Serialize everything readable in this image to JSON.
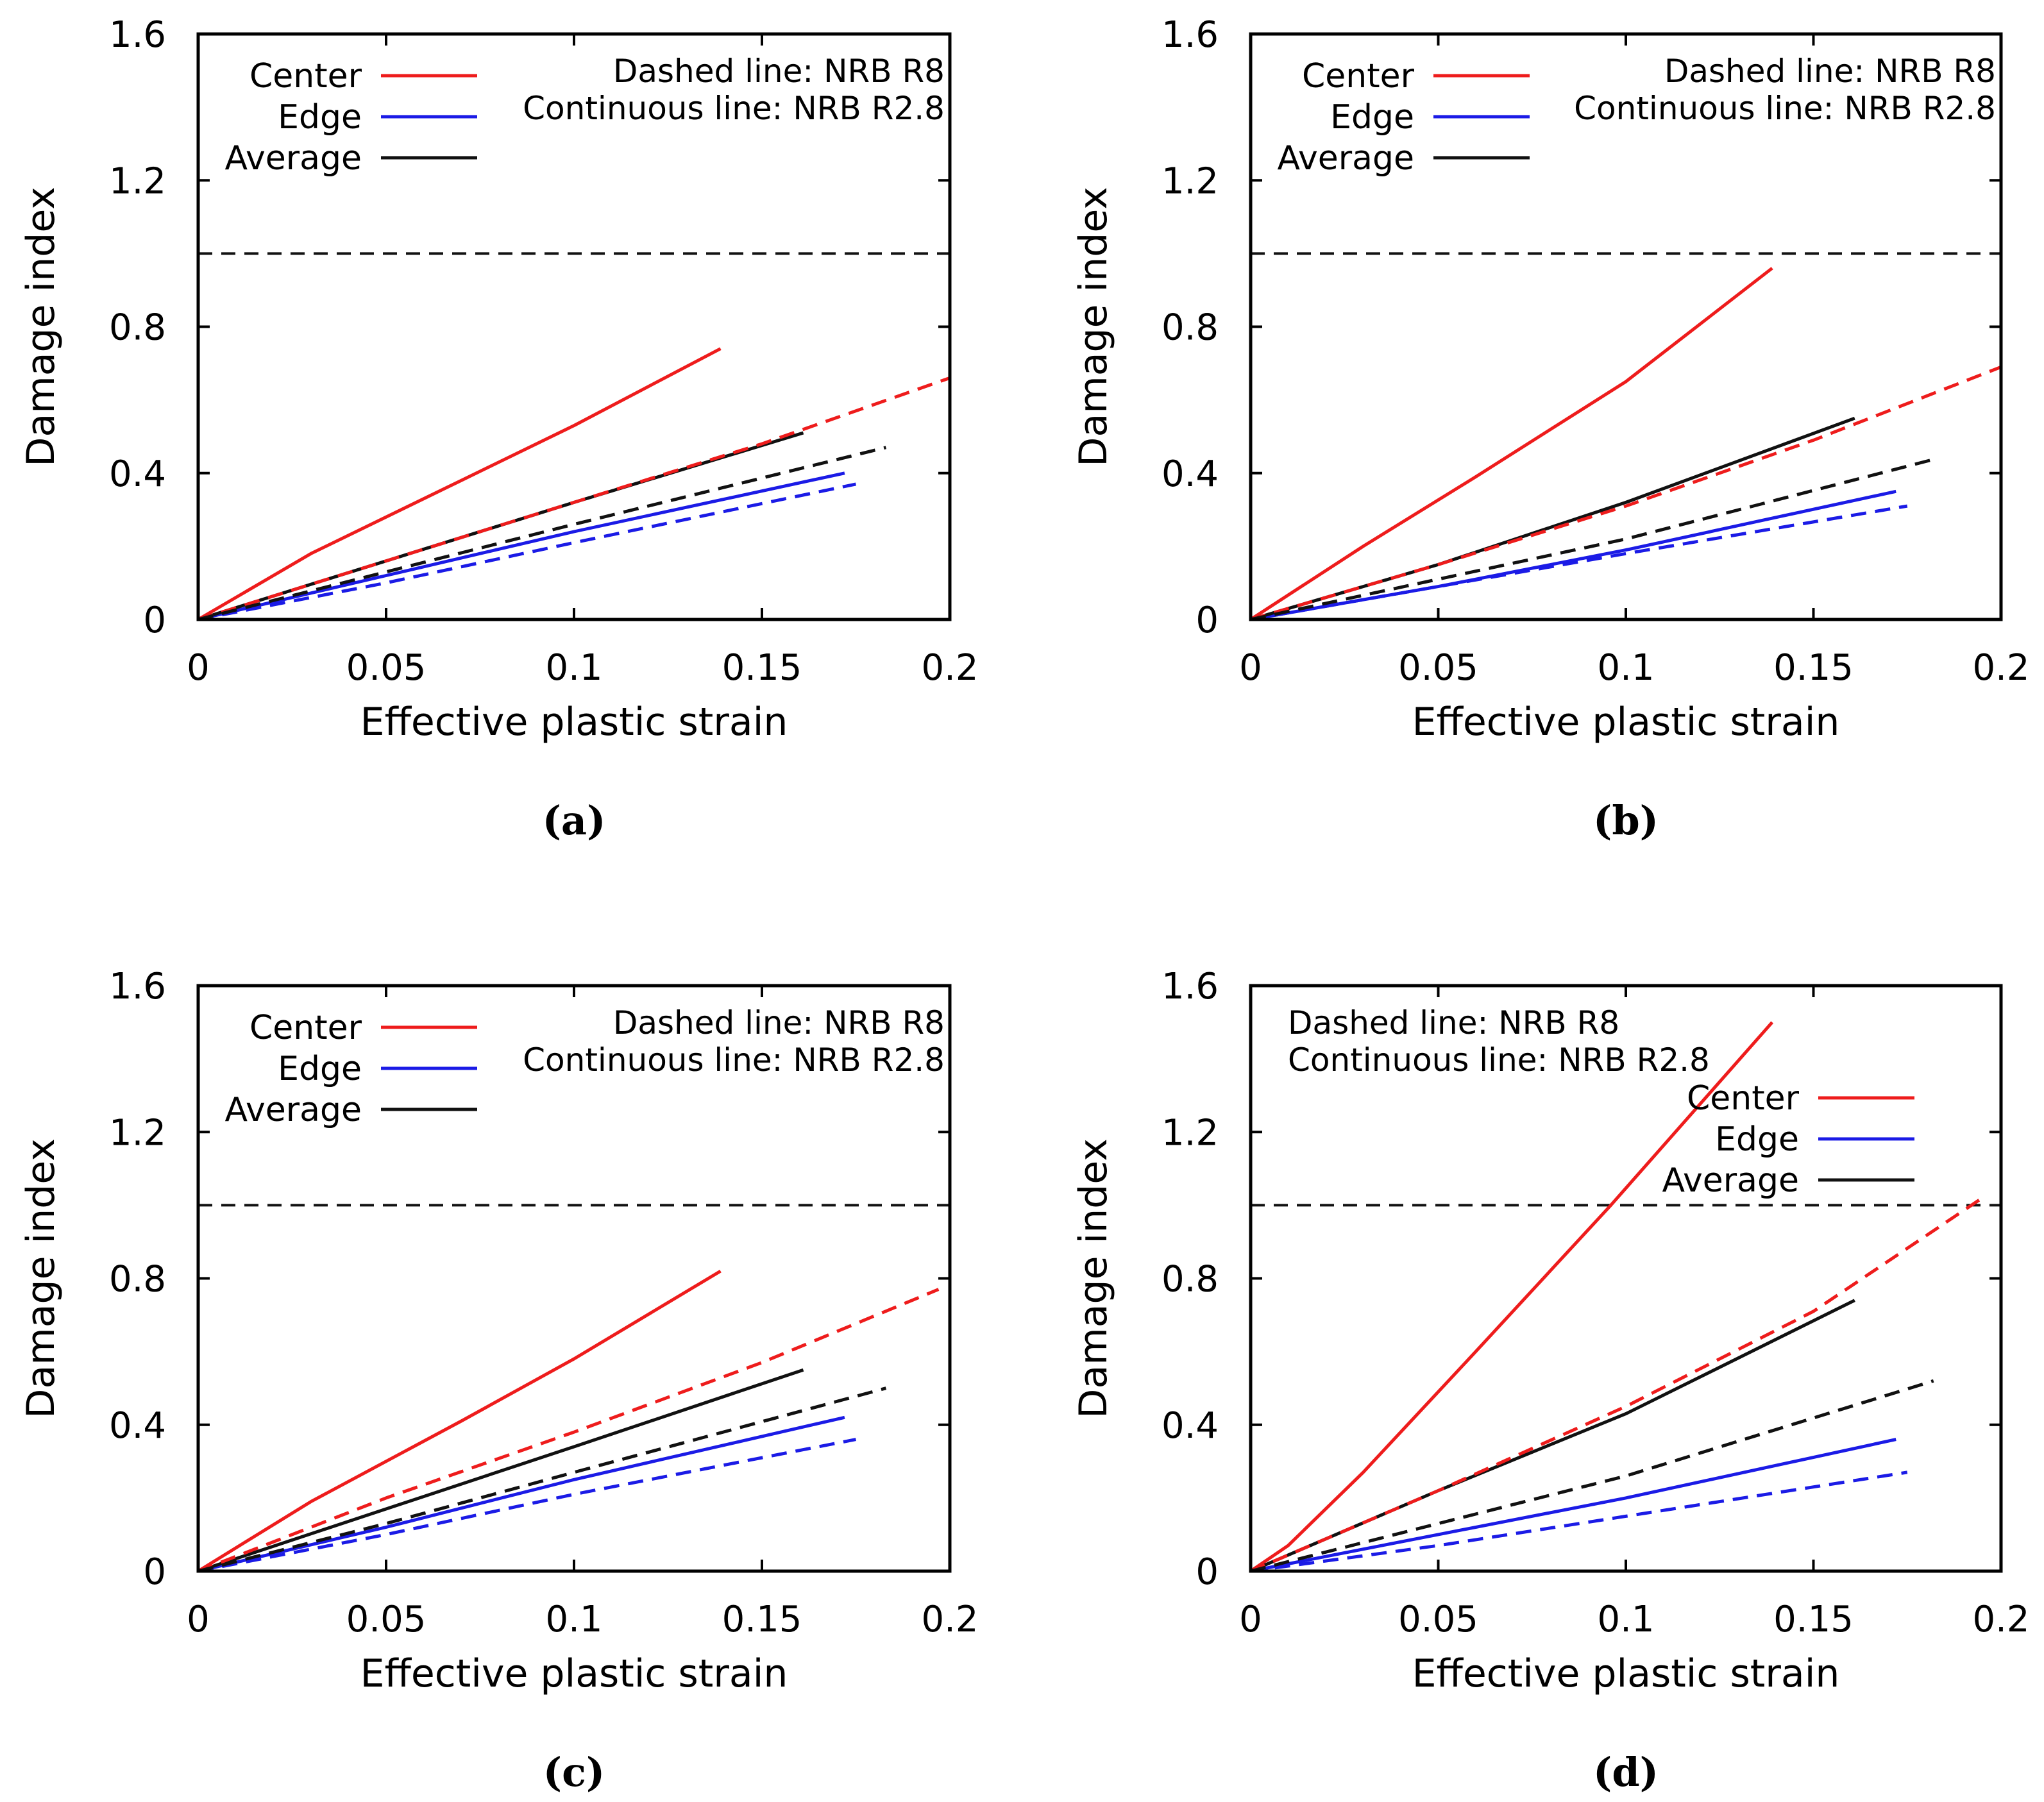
{
  "panel_labels": [
    "(a)",
    "(b)",
    "(c)",
    "(d)"
  ],
  "colors": {
    "center": "#ee1c1c",
    "edge": "#1b1be6",
    "average": "#111111",
    "axis": "#000000"
  },
  "chart_data": [
    {
      "id": "a",
      "type": "line",
      "caption": "(a)",
      "xlabel": "Effective plastic strain",
      "ylabel": "Damage index",
      "xlim": [
        0,
        0.2
      ],
      "ylim": [
        0,
        1.6
      ],
      "xticks": [
        "0",
        "0.05",
        "0.1",
        "0.15",
        "0.2"
      ],
      "yticks": [
        "0",
        "0.4",
        "0.8",
        "1.2",
        "1.6"
      ],
      "grid": false,
      "legend_position": "top-left",
      "legend": [
        "Center",
        "Edge",
        "Average"
      ],
      "annotation_position": "top-right",
      "annotations": [
        "Dashed line: NRB R8",
        "Continuous line: NRB R2.8"
      ],
      "reference_line": {
        "y": 1.0,
        "style": "dashed"
      },
      "series": [
        {
          "name": "Center",
          "variant": "NRB R2.8",
          "style": "solid",
          "x": [
            0,
            0.03,
            0.07,
            0.1,
            0.139
          ],
          "y": [
            0,
            0.18,
            0.38,
            0.53,
            0.74
          ]
        },
        {
          "name": "Edge",
          "variant": "NRB R2.8",
          "style": "solid",
          "x": [
            0,
            0.05,
            0.1,
            0.172
          ],
          "y": [
            0,
            0.12,
            0.24,
            0.4
          ]
        },
        {
          "name": "Average",
          "variant": "NRB R2.8",
          "style": "solid",
          "x": [
            0,
            0.05,
            0.1,
            0.161
          ],
          "y": [
            0,
            0.16,
            0.32,
            0.51
          ]
        },
        {
          "name": "Center",
          "variant": "NRB R8",
          "style": "dashed",
          "x": [
            0,
            0.05,
            0.1,
            0.15,
            0.2
          ],
          "y": [
            0,
            0.16,
            0.32,
            0.48,
            0.66
          ]
        },
        {
          "name": "Edge",
          "variant": "NRB R8",
          "style": "dashed",
          "x": [
            0,
            0.05,
            0.1,
            0.175
          ],
          "y": [
            0,
            0.1,
            0.21,
            0.37
          ]
        },
        {
          "name": "Average",
          "variant": "NRB R8",
          "style": "dashed",
          "x": [
            0,
            0.05,
            0.1,
            0.183
          ],
          "y": [
            0,
            0.13,
            0.26,
            0.47
          ]
        }
      ]
    },
    {
      "id": "b",
      "type": "line",
      "caption": "(b)",
      "xlabel": "Effective plastic strain",
      "ylabel": "Damage index",
      "xlim": [
        0,
        0.2
      ],
      "ylim": [
        0,
        1.6
      ],
      "xticks": [
        "0",
        "0.05",
        "0.1",
        "0.15",
        "0.2"
      ],
      "yticks": [
        "0",
        "0.4",
        "0.8",
        "1.2",
        "1.6"
      ],
      "grid": false,
      "legend_position": "top-left",
      "legend": [
        "Center",
        "Edge",
        "Average"
      ],
      "annotation_position": "top-right",
      "annotations": [
        "Dashed line: NRB R8",
        "Continuous line: NRB R2.8"
      ],
      "reference_line": {
        "y": 1.0,
        "style": "dashed"
      },
      "series": [
        {
          "name": "Center",
          "variant": "NRB R2.8",
          "style": "solid",
          "x": [
            0,
            0.03,
            0.06,
            0.1,
            0.139
          ],
          "y": [
            0,
            0.2,
            0.39,
            0.65,
            0.96
          ]
        },
        {
          "name": "Edge",
          "variant": "NRB R2.8",
          "style": "solid",
          "x": [
            0,
            0.05,
            0.1,
            0.172
          ],
          "y": [
            0,
            0.09,
            0.19,
            0.35
          ]
        },
        {
          "name": "Average",
          "variant": "NRB R2.8",
          "style": "solid",
          "x": [
            0,
            0.05,
            0.1,
            0.161
          ],
          "y": [
            0,
            0.15,
            0.32,
            0.55
          ]
        },
        {
          "name": "Center",
          "variant": "NRB R8",
          "style": "dashed",
          "x": [
            0,
            0.05,
            0.1,
            0.15,
            0.2
          ],
          "y": [
            0,
            0.15,
            0.31,
            0.49,
            0.69
          ]
        },
        {
          "name": "Edge",
          "variant": "NRB R8",
          "style": "dashed",
          "x": [
            0,
            0.05,
            0.1,
            0.175
          ],
          "y": [
            0,
            0.09,
            0.18,
            0.31
          ]
        },
        {
          "name": "Average",
          "variant": "NRB R8",
          "style": "dashed",
          "x": [
            0,
            0.05,
            0.1,
            0.183
          ],
          "y": [
            0,
            0.11,
            0.22,
            0.44
          ]
        }
      ]
    },
    {
      "id": "c",
      "type": "line",
      "caption": "(c)",
      "xlabel": "Effective plastic strain",
      "ylabel": "Damage index",
      "xlim": [
        0,
        0.2
      ],
      "ylim": [
        0,
        1.6
      ],
      "xticks": [
        "0",
        "0.05",
        "0.1",
        "0.15",
        "0.2"
      ],
      "yticks": [
        "0",
        "0.4",
        "0.8",
        "1.2",
        "1.6"
      ],
      "grid": false,
      "legend_position": "top-left",
      "legend": [
        "Center",
        "Edge",
        "Average"
      ],
      "annotation_position": "top-right",
      "annotations": [
        "Dashed line: NRB R8",
        "Continuous line: NRB R2.8"
      ],
      "reference_line": {
        "y": 1.0,
        "style": "dashed"
      },
      "series": [
        {
          "name": "Center",
          "variant": "NRB R2.8",
          "style": "solid",
          "x": [
            0,
            0.03,
            0.07,
            0.1,
            0.139
          ],
          "y": [
            0,
            0.19,
            0.41,
            0.58,
            0.82
          ]
        },
        {
          "name": "Edge",
          "variant": "NRB R2.8",
          "style": "solid",
          "x": [
            0,
            0.05,
            0.1,
            0.172
          ],
          "y": [
            0,
            0.12,
            0.25,
            0.42
          ]
        },
        {
          "name": "Average",
          "variant": "NRB R2.8",
          "style": "solid",
          "x": [
            0,
            0.05,
            0.1,
            0.161
          ],
          "y": [
            0,
            0.17,
            0.34,
            0.55
          ]
        },
        {
          "name": "Center",
          "variant": "NRB R8",
          "style": "dashed",
          "x": [
            0,
            0.05,
            0.1,
            0.15,
            0.197
          ],
          "y": [
            0,
            0.2,
            0.38,
            0.57,
            0.77
          ]
        },
        {
          "name": "Edge",
          "variant": "NRB R8",
          "style": "dashed",
          "x": [
            0,
            0.05,
            0.1,
            0.175
          ],
          "y": [
            0,
            0.1,
            0.21,
            0.36
          ]
        },
        {
          "name": "Average",
          "variant": "NRB R8",
          "style": "dashed",
          "x": [
            0,
            0.05,
            0.1,
            0.183
          ],
          "y": [
            0,
            0.13,
            0.27,
            0.5
          ]
        }
      ]
    },
    {
      "id": "d",
      "type": "line",
      "caption": "(d)",
      "xlabel": "Effective plastic strain",
      "ylabel": "Damage index",
      "xlim": [
        0,
        0.2
      ],
      "ylim": [
        0,
        1.6
      ],
      "xticks": [
        "0",
        "0.05",
        "0.1",
        "0.15",
        "0.2"
      ],
      "yticks": [
        "0",
        "0.4",
        "0.8",
        "1.2",
        "1.6"
      ],
      "grid": false,
      "legend_position": "upper-right",
      "legend": [
        "Center",
        "Edge",
        "Average"
      ],
      "annotation_position": "top-left",
      "annotations": [
        "Dashed line: NRB R8",
        "Continuous line: NRB R2.8"
      ],
      "reference_line": {
        "y": 1.0,
        "style": "dashed"
      },
      "series": [
        {
          "name": "Center",
          "variant": "NRB R2.8",
          "style": "solid",
          "x": [
            0,
            0.01,
            0.03,
            0.06,
            0.096,
            0.139
          ],
          "y": [
            0,
            0.07,
            0.27,
            0.6,
            1.0,
            1.5
          ]
        },
        {
          "name": "Edge",
          "variant": "NRB R2.8",
          "style": "solid",
          "x": [
            0,
            0.05,
            0.1,
            0.172
          ],
          "y": [
            0,
            0.1,
            0.2,
            0.36
          ]
        },
        {
          "name": "Average",
          "variant": "NRB R2.8",
          "style": "solid",
          "x": [
            0,
            0.05,
            0.1,
            0.161
          ],
          "y": [
            0,
            0.22,
            0.43,
            0.74
          ]
        },
        {
          "name": "Center",
          "variant": "NRB R8",
          "style": "dashed",
          "x": [
            0,
            0.05,
            0.1,
            0.15,
            0.195
          ],
          "y": [
            0,
            0.22,
            0.45,
            0.71,
            1.02
          ]
        },
        {
          "name": "Edge",
          "variant": "NRB R8",
          "style": "dashed",
          "x": [
            0,
            0.05,
            0.1,
            0.175
          ],
          "y": [
            0,
            0.07,
            0.15,
            0.27
          ]
        },
        {
          "name": "Average",
          "variant": "NRB R8",
          "style": "dashed",
          "x": [
            0,
            0.05,
            0.1,
            0.182
          ],
          "y": [
            0,
            0.13,
            0.26,
            0.52
          ]
        }
      ]
    }
  ]
}
